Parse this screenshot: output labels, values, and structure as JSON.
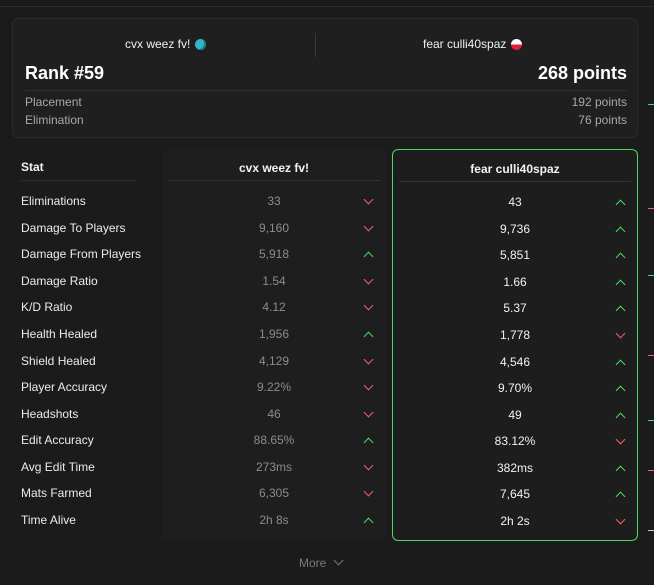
{
  "match": {
    "team_a": "cvx weez fv!",
    "team_b": "fear culli40spaz",
    "rank": "Rank #59",
    "points": "268 points",
    "placement_label": "Placement",
    "placement_value": "192 points",
    "elimination_label": "Elimination",
    "elimination_value": "76 points"
  },
  "table": {
    "stat_header": "Stat",
    "col_a_title": "cvx weez fv!",
    "col_b_title": "fear culli40spaz",
    "rows": [
      {
        "stat": "Eliminations",
        "a": "33",
        "b": "43",
        "a_trend": "down",
        "b_trend": "up"
      },
      {
        "stat": "Damage To Players",
        "a": "9,160",
        "b": "9,736",
        "a_trend": "down",
        "b_trend": "up"
      },
      {
        "stat": "Damage From Players",
        "a": "5,918",
        "b": "5,851",
        "a_trend": "up",
        "b_trend": "up"
      },
      {
        "stat": "Damage Ratio",
        "a": "1.54",
        "b": "1.66",
        "a_trend": "down",
        "b_trend": "up"
      },
      {
        "stat": "K/D Ratio",
        "a": "4.12",
        "b": "5.37",
        "a_trend": "down",
        "b_trend": "up"
      },
      {
        "stat": "Health Healed",
        "a": "1,956",
        "b": "1,778",
        "a_trend": "up",
        "b_trend": "down"
      },
      {
        "stat": "Shield Healed",
        "a": "4,129",
        "b": "4,546",
        "a_trend": "down",
        "b_trend": "up"
      },
      {
        "stat": "Player Accuracy",
        "a": "9.22%",
        "b": "9.70%",
        "a_trend": "down",
        "b_trend": "up"
      },
      {
        "stat": "Headshots",
        "a": "46",
        "b": "49",
        "a_trend": "down",
        "b_trend": "up"
      },
      {
        "stat": "Edit Accuracy",
        "a": "88.65%",
        "b": "83.12%",
        "a_trend": "up",
        "b_trend": "down"
      },
      {
        "stat": "Avg Edit Time",
        "a": "273ms",
        "b": "382ms",
        "a_trend": "down",
        "b_trend": "up"
      },
      {
        "stat": "Mats Farmed",
        "a": "6,305",
        "b": "7,645",
        "a_trend": "down",
        "b_trend": "up"
      },
      {
        "stat": "Time Alive",
        "a": "2h 8s",
        "b": "2h 2s",
        "a_trend": "up",
        "b_trend": "down"
      }
    ]
  },
  "more_label": "More",
  "colors": {
    "accent": "#4cd964",
    "up": "#4cd964",
    "down": "#ff5c5c"
  }
}
